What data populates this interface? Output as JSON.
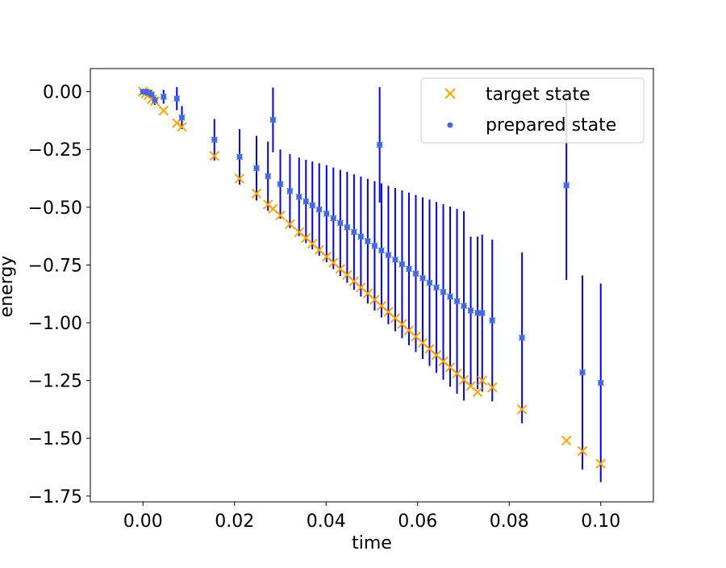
{
  "colors": {
    "target": "#FFA500",
    "prepared": "#4169E1",
    "errorbar": "#0000FF",
    "axes": "#000000"
  },
  "chart_data": {
    "type": "scatter",
    "title": "",
    "xlabel": "time",
    "ylabel": "energy",
    "xlim": [
      -0.0115,
      0.1115
    ],
    "ylim": [
      -1.775,
      0.1
    ],
    "xticks": [
      0.0,
      0.02,
      0.04,
      0.06,
      0.08,
      0.1
    ],
    "xtick_labels": [
      "0.00",
      "0.02",
      "0.04",
      "0.06",
      "0.08",
      "0.10"
    ],
    "yticks": [
      0.0,
      -0.25,
      -0.5,
      -0.75,
      -1.0,
      -1.25,
      -1.5,
      -1.75
    ],
    "ytick_labels": [
      "0.00",
      "−0.25",
      "−0.50",
      "−0.75",
      "−1.00",
      "−1.25",
      "−1.50",
      "−1.75"
    ],
    "grid": false,
    "legend": {
      "placement": "top-right",
      "entries": [
        "target state",
        "prepared state"
      ]
    },
    "series": [
      {
        "name": "target state",
        "marker": "x",
        "x": [
          0.0,
          0.0006,
          0.0012,
          0.0019,
          0.0026,
          0.0045,
          0.0074,
          0.0085,
          0.0156,
          0.0211,
          0.0248,
          0.0273,
          0.0284,
          0.03,
          0.0321,
          0.0341,
          0.0356,
          0.037,
          0.0385,
          0.0401,
          0.0416,
          0.0431,
          0.0446,
          0.0461,
          0.0476,
          0.0491,
          0.0506,
          0.0521,
          0.0536,
          0.0551,
          0.0566,
          0.0581,
          0.0596,
          0.0611,
          0.0626,
          0.0641,
          0.0656,
          0.0671,
          0.0686,
          0.0701,
          0.0716,
          0.0731,
          0.0741,
          0.0763,
          0.0828,
          0.0925,
          0.096,
          0.1
        ],
        "y": [
          0.0,
          -0.008,
          -0.016,
          -0.033,
          -0.041,
          -0.082,
          -0.136,
          -0.152,
          -0.278,
          -0.376,
          -0.441,
          -0.488,
          -0.507,
          -0.535,
          -0.573,
          -0.608,
          -0.633,
          -0.658,
          -0.685,
          -0.714,
          -0.74,
          -0.767,
          -0.793,
          -0.82,
          -0.847,
          -0.873,
          -0.9,
          -0.927,
          -0.953,
          -0.98,
          -1.006,
          -1.033,
          -1.06,
          -1.087,
          -1.113,
          -1.14,
          -1.167,
          -1.193,
          -1.22,
          -1.247,
          -1.274,
          -1.3,
          -1.25,
          -1.28,
          -1.375,
          -1.51,
          -1.555,
          -1.61
        ]
      },
      {
        "name": "prepared state",
        "marker": "o",
        "x": [
          0.0,
          0.0006,
          0.0012,
          0.0019,
          0.0026,
          0.0045,
          0.0074,
          0.0085,
          0.0156,
          0.0211,
          0.0248,
          0.0273,
          0.0284,
          0.03,
          0.0321,
          0.0341,
          0.0356,
          0.037,
          0.0385,
          0.0401,
          0.0416,
          0.0431,
          0.0446,
          0.0461,
          0.0476,
          0.0491,
          0.0506,
          0.0521,
          0.0536,
          0.0551,
          0.0566,
          0.0581,
          0.0596,
          0.0611,
          0.0626,
          0.0641,
          0.0656,
          0.0671,
          0.0686,
          0.0701,
          0.0716,
          0.0731,
          0.0741,
          0.0763,
          0.0828,
          0.0925,
          0.096,
          0.1,
          0.0517
        ],
        "y": [
          0.0,
          0.0,
          -0.005,
          -0.013,
          -0.037,
          -0.022,
          -0.03,
          -0.112,
          -0.208,
          -0.282,
          -0.331,
          -0.366,
          -0.122,
          -0.4,
          -0.43,
          -0.455,
          -0.475,
          -0.492,
          -0.51,
          -0.528,
          -0.548,
          -0.568,
          -0.587,
          -0.607,
          -0.627,
          -0.647,
          -0.667,
          -0.687,
          -0.707,
          -0.727,
          -0.747,
          -0.767,
          -0.787,
          -0.807,
          -0.827,
          -0.847,
          -0.867,
          -0.887,
          -0.907,
          -0.927,
          -0.947,
          -0.957,
          -0.958,
          -0.99,
          -1.065,
          -0.405,
          -1.215,
          -1.26,
          -0.23
        ],
        "yerr": [
          0.0,
          0.01,
          0.01,
          0.02,
          0.02,
          0.03,
          0.05,
          0.05,
          0.09,
          0.12,
          0.14,
          0.15,
          0.14,
          0.15,
          0.16,
          0.17,
          0.18,
          0.19,
          0.2,
          0.21,
          0.22,
          0.23,
          0.24,
          0.25,
          0.26,
          0.27,
          0.28,
          0.29,
          0.3,
          0.31,
          0.32,
          0.33,
          0.34,
          0.35,
          0.36,
          0.37,
          0.38,
          0.39,
          0.4,
          0.41,
          0.32,
          0.33,
          0.34,
          0.35,
          0.37,
          0.41,
          0.42,
          0.43,
          0.25
        ]
      }
    ]
  }
}
